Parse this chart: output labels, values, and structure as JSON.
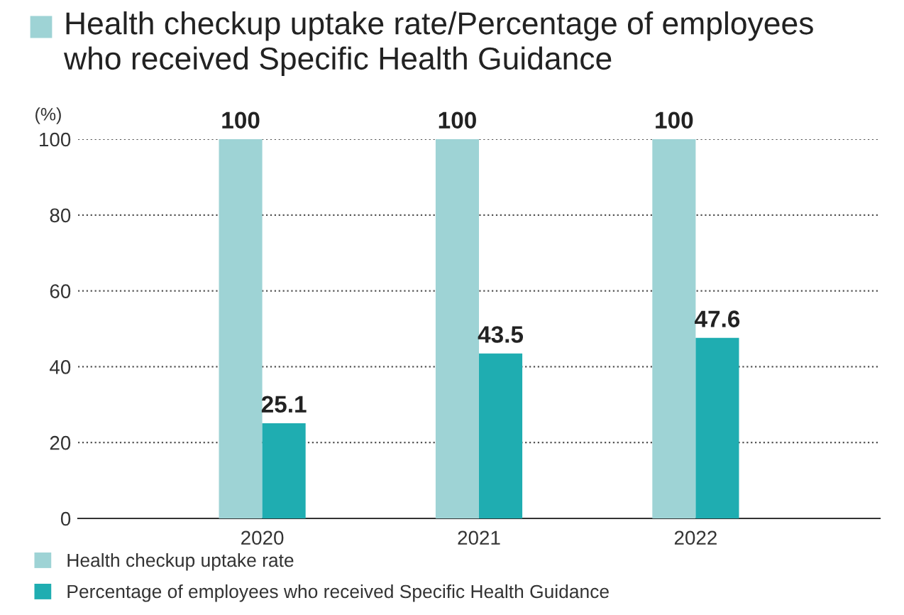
{
  "chart_data": {
    "type": "bar",
    "title": "Health checkup uptake rate/Percentage of employees\nwho received Specific Health Guidance",
    "ylabel": "(%)",
    "categories": [
      "2020",
      "2021",
      "2022"
    ],
    "series": [
      {
        "name": "Health checkup uptake rate",
        "color": "#9ed3d5",
        "values": [
          100,
          100,
          100
        ]
      },
      {
        "name": "Percentage of employees who received Specific Health Guidance",
        "color": "#1fadb1",
        "values": [
          25.1,
          43.5,
          47.6
        ]
      }
    ],
    "ylim": [
      0,
      100
    ],
    "yticks": [
      0,
      20,
      40,
      60,
      80,
      100
    ],
    "grid": "y",
    "line_style": "dotted",
    "data_labels": true,
    "legend": "bottom left"
  }
}
